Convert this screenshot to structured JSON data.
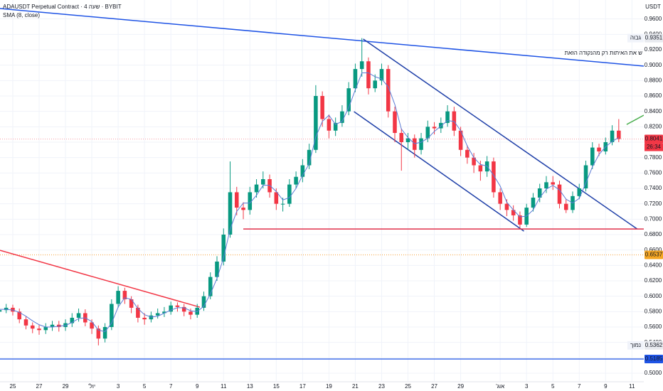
{
  "chart_data": {
    "type": "candlestick",
    "title": "ADAUSDT Perpetual Contract · 4 שעה · BYBIT",
    "y_label": "USDT",
    "annotation": "ש את האיתות רק מהנקודה הזאת",
    "grid": true,
    "up_color": "#089981",
    "down_color": "#f23645",
    "xlim": [
      -0.97,
      47.9
    ],
    "ylim": [
      0.4954,
      0.9846
    ],
    "xticks": [
      {
        "value": 0,
        "label": "25"
      },
      {
        "value": 2,
        "label": "27"
      },
      {
        "value": 4,
        "label": "29"
      },
      {
        "value": 6,
        "label": "יול'"
      },
      {
        "value": 8,
        "label": "3"
      },
      {
        "value": 10,
        "label": "5"
      },
      {
        "value": 12,
        "label": "7"
      },
      {
        "value": 14,
        "label": "9"
      },
      {
        "value": 16,
        "label": "11"
      },
      {
        "value": 18,
        "label": "13"
      },
      {
        "value": 20,
        "label": "15"
      },
      {
        "value": 22,
        "label": "17"
      },
      {
        "value": 24,
        "label": "19"
      },
      {
        "value": 26,
        "label": "21"
      },
      {
        "value": 28,
        "label": "23"
      },
      {
        "value": 30,
        "label": "25"
      },
      {
        "value": 32,
        "label": "27"
      },
      {
        "value": 34,
        "label": "29"
      },
      {
        "value": 37,
        "label": "אוג'"
      },
      {
        "value": 39,
        "label": "3"
      },
      {
        "value": 41,
        "label": "5"
      },
      {
        "value": 43,
        "label": "7"
      },
      {
        "value": 45,
        "label": "9"
      },
      {
        "value": 47,
        "label": "11"
      }
    ],
    "yticks": [
      {
        "value": 0.5,
        "label": "0.5000"
      },
      {
        "value": 0.52,
        "label": "0.5200"
      },
      {
        "value": 0.54,
        "label": "0.5400"
      },
      {
        "value": 0.56,
        "label": "0.5600"
      },
      {
        "value": 0.58,
        "label": "0.5800"
      },
      {
        "value": 0.6,
        "label": "0.6000"
      },
      {
        "value": 0.62,
        "label": "0.6200"
      },
      {
        "value": 0.64,
        "label": "0.6400"
      },
      {
        "value": 0.66,
        "label": "0.6600"
      },
      {
        "value": 0.68,
        "label": "0.6800"
      },
      {
        "value": 0.7,
        "label": "0.7000"
      },
      {
        "value": 0.72,
        "label": "0.7200"
      },
      {
        "value": 0.74,
        "label": "0.7400"
      },
      {
        "value": 0.76,
        "label": "0.7600"
      },
      {
        "value": 0.78,
        "label": "0.7800"
      },
      {
        "value": 0.8,
        "label": "0.8000"
      },
      {
        "value": 0.82,
        "label": "0.8200"
      },
      {
        "value": 0.84,
        "label": "0.8400"
      },
      {
        "value": 0.86,
        "label": "0.8600"
      },
      {
        "value": 0.88,
        "label": "0.8800"
      },
      {
        "value": 0.9,
        "label": "0.9000"
      },
      {
        "value": 0.92,
        "label": "0.9200"
      },
      {
        "value": 0.94,
        "label": "0.9400"
      },
      {
        "value": 0.96,
        "label": "0.9600"
      }
    ],
    "x": [
      -1,
      -0.5,
      0,
      0.5,
      1,
      1.5,
      2,
      2.5,
      3,
      3.5,
      4,
      4.5,
      5,
      5.5,
      6,
      6.5,
      7,
      7.5,
      8,
      8.5,
      9,
      9.5,
      10,
      10.5,
      11,
      11.5,
      12,
      12.5,
      13,
      13.5,
      14,
      14.5,
      15,
      15.5,
      16,
      16.5,
      17,
      17.5,
      18,
      18.5,
      19,
      19.5,
      20,
      20.5,
      21,
      21.5,
      22,
      22.5,
      23,
      23.5,
      24,
      24.5,
      25,
      25.5,
      26,
      26.5,
      27,
      27.5,
      28,
      28.5,
      29,
      29.5,
      30,
      30.5,
      31,
      31.5,
      32,
      32.5,
      33,
      33.5,
      34,
      34.5,
      35,
      35.5,
      36,
      36.5,
      37,
      37.5,
      38,
      38.5,
      39,
      39.5,
      40,
      40.5,
      41,
      41.5,
      42,
      42.5,
      43,
      43.5,
      44,
      44.5,
      45,
      45.5,
      46
    ],
    "open": [
      0.58,
      0.582,
      0.585,
      0.58,
      0.57,
      0.562,
      0.558,
      0.556,
      0.56,
      0.563,
      0.56,
      0.565,
      0.572,
      0.578,
      0.566,
      0.558,
      0.545,
      0.56,
      0.59,
      0.607,
      0.596,
      0.585,
      0.572,
      0.57,
      0.575,
      0.578,
      0.58,
      0.588,
      0.586,
      0.58,
      0.576,
      0.585,
      0.6,
      0.625,
      0.645,
      0.68,
      0.735,
      0.715,
      0.712,
      0.735,
      0.745,
      0.752,
      0.735,
      0.72,
      0.72,
      0.745,
      0.755,
      0.77,
      0.79,
      0.86,
      0.83,
      0.815,
      0.825,
      0.84,
      0.87,
      0.895,
      0.905,
      0.87,
      0.88,
      0.895,
      0.84,
      0.812,
      0.8,
      0.805,
      0.79,
      0.805,
      0.82,
      0.818,
      0.825,
      0.84,
      0.815,
      0.79,
      0.78,
      0.77,
      0.762,
      0.775,
      0.735,
      0.72,
      0.712,
      0.705,
      0.693,
      0.715,
      0.728,
      0.74,
      0.748,
      0.745,
      0.72,
      0.712,
      0.73,
      0.74,
      0.77,
      0.793,
      0.788,
      0.8,
      0.815
    ],
    "high": [
      0.588,
      0.59,
      0.589,
      0.584,
      0.574,
      0.566,
      0.563,
      0.565,
      0.568,
      0.568,
      0.57,
      0.578,
      0.584,
      0.583,
      0.57,
      0.562,
      0.565,
      0.596,
      0.613,
      0.611,
      0.6,
      0.589,
      0.578,
      0.58,
      0.584,
      0.586,
      0.593,
      0.592,
      0.59,
      0.584,
      0.59,
      0.606,
      0.631,
      0.652,
      0.688,
      0.775,
      0.742,
      0.722,
      0.742,
      0.752,
      0.762,
      0.758,
      0.74,
      0.728,
      0.752,
      0.762,
      0.778,
      0.798,
      0.874,
      0.866,
      0.836,
      0.832,
      0.848,
      0.878,
      0.902,
      0.9351,
      0.91,
      0.888,
      0.902,
      0.9,
      0.846,
      0.818,
      0.812,
      0.81,
      0.812,
      0.828,
      0.826,
      0.832,
      0.848,
      0.846,
      0.82,
      0.796,
      0.786,
      0.776,
      0.782,
      0.78,
      0.74,
      0.726,
      0.718,
      0.71,
      0.72,
      0.734,
      0.746,
      0.756,
      0.756,
      0.75,
      0.726,
      0.736,
      0.746,
      0.776,
      0.8,
      0.798,
      0.806,
      0.822,
      0.83
    ],
    "low": [
      0.575,
      0.578,
      0.575,
      0.565,
      0.557,
      0.552,
      0.55,
      0.551,
      0.555,
      0.554,
      0.555,
      0.56,
      0.567,
      0.561,
      0.551,
      0.5362,
      0.54,
      0.556,
      0.585,
      0.59,
      0.578,
      0.566,
      0.563,
      0.566,
      0.571,
      0.573,
      0.576,
      0.58,
      0.574,
      0.57,
      0.572,
      0.581,
      0.596,
      0.62,
      0.64,
      0.676,
      0.705,
      0.7,
      0.706,
      0.728,
      0.74,
      0.728,
      0.712,
      0.71,
      0.716,
      0.74,
      0.748,
      0.765,
      0.786,
      0.82,
      0.805,
      0.808,
      0.82,
      0.835,
      0.865,
      0.885,
      0.862,
      0.865,
      0.874,
      0.832,
      0.8,
      0.763,
      0.79,
      0.78,
      0.784,
      0.8,
      0.81,
      0.812,
      0.82,
      0.808,
      0.782,
      0.772,
      0.76,
      0.75,
      0.755,
      0.728,
      0.712,
      0.704,
      0.698,
      0.689,
      0.69,
      0.71,
      0.722,
      0.734,
      0.738,
      0.714,
      0.708,
      0.708,
      0.726,
      0.736,
      0.765,
      0.782,
      0.784,
      0.796,
      0.8
    ],
    "close": [
      0.582,
      0.585,
      0.58,
      0.57,
      0.562,
      0.558,
      0.556,
      0.56,
      0.563,
      0.56,
      0.565,
      0.572,
      0.578,
      0.566,
      0.558,
      0.545,
      0.56,
      0.59,
      0.607,
      0.596,
      0.585,
      0.572,
      0.57,
      0.575,
      0.578,
      0.58,
      0.588,
      0.586,
      0.58,
      0.576,
      0.585,
      0.6,
      0.625,
      0.645,
      0.68,
      0.735,
      0.715,
      0.712,
      0.735,
      0.745,
      0.752,
      0.735,
      0.72,
      0.72,
      0.745,
      0.755,
      0.77,
      0.79,
      0.86,
      0.83,
      0.815,
      0.825,
      0.84,
      0.87,
      0.895,
      0.905,
      0.87,
      0.88,
      0.895,
      0.84,
      0.812,
      0.8,
      0.805,
      0.79,
      0.805,
      0.82,
      0.818,
      0.825,
      0.84,
      0.815,
      0.79,
      0.78,
      0.77,
      0.762,
      0.775,
      0.735,
      0.72,
      0.712,
      0.705,
      0.693,
      0.715,
      0.728,
      0.74,
      0.748,
      0.745,
      0.72,
      0.712,
      0.73,
      0.74,
      0.77,
      0.793,
      0.788,
      0.8,
      0.815,
      0.8041
    ],
    "sma": {
      "name": "SMA (8, close)",
      "color": "#5b7bd5",
      "values": [
        0.583,
        0.583,
        0.582,
        0.579,
        0.574,
        0.568,
        0.563,
        0.56,
        0.56,
        0.561,
        0.562,
        0.566,
        0.571,
        0.572,
        0.567,
        0.556,
        0.554,
        0.565,
        0.586,
        0.598,
        0.596,
        0.584,
        0.576,
        0.573,
        0.574,
        0.578,
        0.582,
        0.585,
        0.585,
        0.581,
        0.58,
        0.587,
        0.603,
        0.623,
        0.65,
        0.687,
        0.71,
        0.721,
        0.721,
        0.731,
        0.744,
        0.744,
        0.736,
        0.725,
        0.728,
        0.74,
        0.757,
        0.772,
        0.807,
        0.827,
        0.835,
        0.823,
        0.827,
        0.845,
        0.868,
        0.89,
        0.89,
        0.885,
        0.882,
        0.872,
        0.849,
        0.817,
        0.806,
        0.798,
        0.8,
        0.805,
        0.814,
        0.821,
        0.828,
        0.827,
        0.815,
        0.795,
        0.78,
        0.771,
        0.769,
        0.757,
        0.743,
        0.722,
        0.712,
        0.703,
        0.704,
        0.712,
        0.728,
        0.739,
        0.744,
        0.738,
        0.726,
        0.721,
        0.727,
        0.747,
        0.768,
        0.784,
        0.794,
        0.801,
        0.806
      ]
    },
    "drawings": [
      {
        "x": [
          -0.97,
          47.9
        ],
        "y": [
          0.9735,
          0.8988
        ],
        "color": "#1e53e5"
      },
      {
        "x": [
          26.6,
          47.4
        ],
        "y": [
          0.9339,
          0.6873
        ],
        "color": "#1e3fa8"
      },
      {
        "x": [
          25.9,
          38.8
        ],
        "y": [
          0.8397,
          0.6845
        ],
        "color": "#1e3fa8"
      },
      {
        "x": [
          -0.97,
          14.2
        ],
        "y": [
          0.6596,
          0.5858
        ],
        "color": "#f23645"
      },
      {
        "x": [
          46.6,
          47.9
        ],
        "y": [
          0.823,
          0.835
        ],
        "color": "#4caf50"
      },
      {
        "x": [
          17.5,
          47.9
        ],
        "y": [
          0.6873,
          0.6873
        ],
        "color": "#e0304a"
      }
    ],
    "hlines": [
      {
        "value": 0.8041,
        "color": "#f7a6ae",
        "style": "dotted"
      },
      {
        "value": 0.6537,
        "color": "#f5b05a",
        "style": "dotted"
      },
      {
        "value": 0.5185,
        "color": "#1e53e5",
        "style": "solid"
      }
    ],
    "price_tags": [
      {
        "value": 0.9351,
        "color": "#e8eaef",
        "text_color": "#131722",
        "note": "גבוה",
        "note_side": "left"
      },
      {
        "value": 0.8041,
        "color": "#f23645",
        "text_color": "#ffffff",
        "note": "26:34",
        "note_side": "below"
      },
      {
        "value": 0.6537,
        "color": "#f5a623",
        "text_color": "#131722"
      },
      {
        "value": 0.5362,
        "color": "#e8eaef",
        "text_color": "#131722",
        "note": "נמוך",
        "note_side": "left"
      },
      {
        "value": 0.5185,
        "color": "#1e53e5",
        "text_color": "#ffffff"
      }
    ]
  }
}
